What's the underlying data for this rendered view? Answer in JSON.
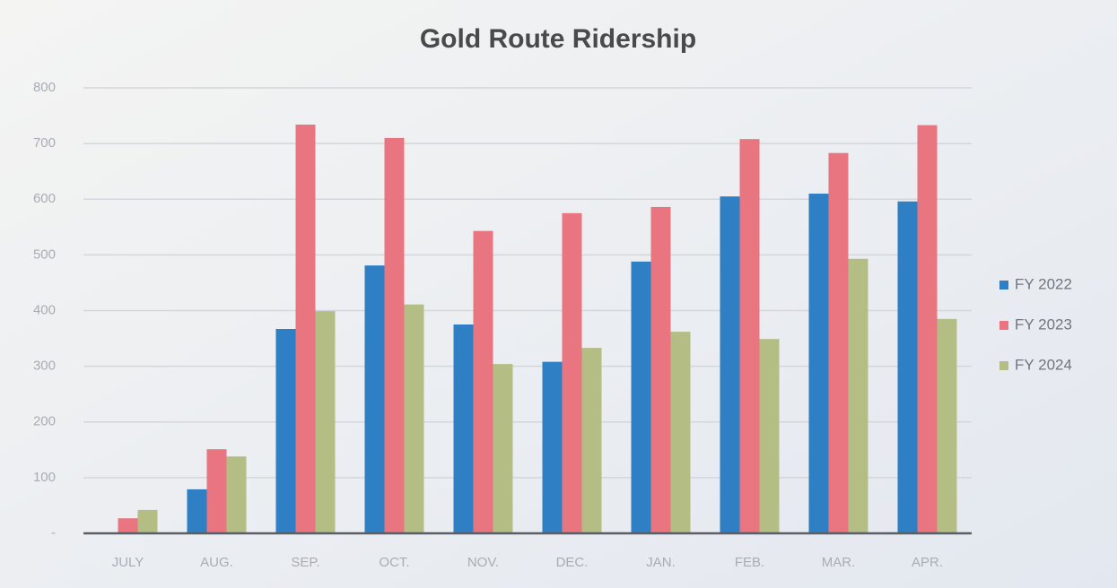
{
  "chart_data": {
    "type": "bar",
    "title": "Gold Route Ridership",
    "categories": [
      "JULY",
      "AUG.",
      "SEP.",
      "OCT.",
      "NOV.",
      "DEC.",
      "JAN.",
      "FEB.",
      "MAR.",
      "APR."
    ],
    "series": [
      {
        "name": "FY 2022",
        "color": "#2f7fc4",
        "values": [
          null,
          79,
          367,
          481,
          375,
          308,
          488,
          605,
          610,
          596
        ]
      },
      {
        "name": "FY 2023",
        "color": "#e8757f",
        "values": [
          27,
          151,
          734,
          710,
          543,
          575,
          586,
          708,
          683,
          733
        ]
      },
      {
        "name": "FY 2024",
        "color": "#b3bd84",
        "values": [
          42,
          138,
          399,
          411,
          304,
          333,
          362,
          349,
          493,
          385
        ]
      }
    ],
    "ylim": [
      0,
      800
    ],
    "yticks": [
      {
        "value": 0,
        "label": "-"
      },
      100,
      200,
      300,
      400,
      500,
      600,
      700,
      800
    ],
    "grid": true,
    "legend": "right"
  }
}
